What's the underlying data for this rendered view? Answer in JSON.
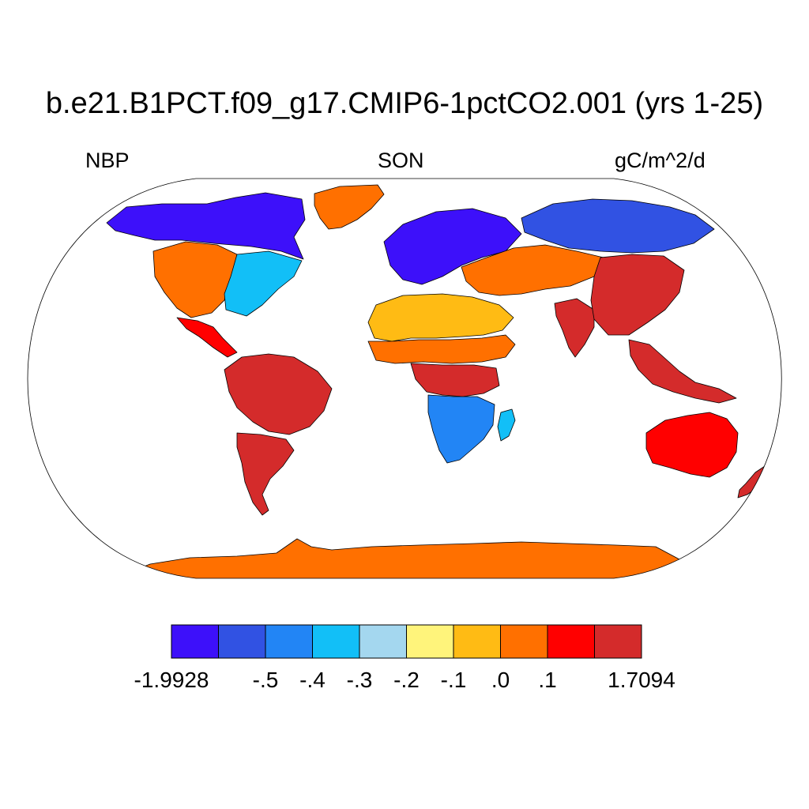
{
  "title": "b.e21.B1PCT.f09_g17.CMIP6-1pctCO2.001 (yrs 1-25)",
  "variable": "NBP",
  "season": "SON",
  "units": "gC/m^2/d",
  "colors": {
    "ocean": "#ffffff",
    "antarctica": "#ff6e00",
    "outline": "#000000"
  },
  "map_data": {
    "projection": "Robinson",
    "field": "NBP",
    "season_label": "SON",
    "units": "gC/m^2/d",
    "min": -1.9928,
    "max": 1.7094,
    "regions": [
      {
        "name": "Greenland",
        "category": 7
      },
      {
        "name": "Northern North America",
        "category": 0
      },
      {
        "name": "Western United States",
        "category": 7
      },
      {
        "name": "Eastern United States",
        "category": 3
      },
      {
        "name": "Central America",
        "category": 8
      },
      {
        "name": "Amazon",
        "category": 9
      },
      {
        "name": "Southern South America",
        "category": 9
      },
      {
        "name": "Sahara",
        "category": 6
      },
      {
        "name": "Sahel",
        "category": 7
      },
      {
        "name": "Central Africa",
        "category": 9
      },
      {
        "name": "Southern Africa",
        "category": 2
      },
      {
        "name": "Madagascar",
        "category": 3
      },
      {
        "name": "Europe",
        "category": 0
      },
      {
        "name": "Siberia",
        "category": 1
      },
      {
        "name": "Central Asia",
        "category": 7
      },
      {
        "name": "India",
        "category": 9
      },
      {
        "name": "China",
        "category": 9
      },
      {
        "name": "Southeast Asia",
        "category": 9
      },
      {
        "name": "Australia",
        "category": 8
      },
      {
        "name": "New Zealand",
        "category": 9
      },
      {
        "name": "Antarctica",
        "category": 7
      }
    ]
  },
  "colorbar": {
    "colors": [
      "#3d10fa",
      "#3152e3",
      "#2285f5",
      "#12bff7",
      "#a4d7ef",
      "#fff47b",
      "#ffbb14",
      "#ff7000",
      "#ff0000",
      "#d42b2b"
    ],
    "labels": [
      "-1.9928",
      "-.5",
      "-.4",
      "-.3",
      "-.2",
      "-.1",
      ".0",
      ".1",
      "1.7094"
    ],
    "boundaries": [
      -1.9928,
      -0.5,
      -0.4,
      -0.3,
      -0.2,
      -0.1,
      0.0,
      0.1,
      1.7094
    ]
  }
}
